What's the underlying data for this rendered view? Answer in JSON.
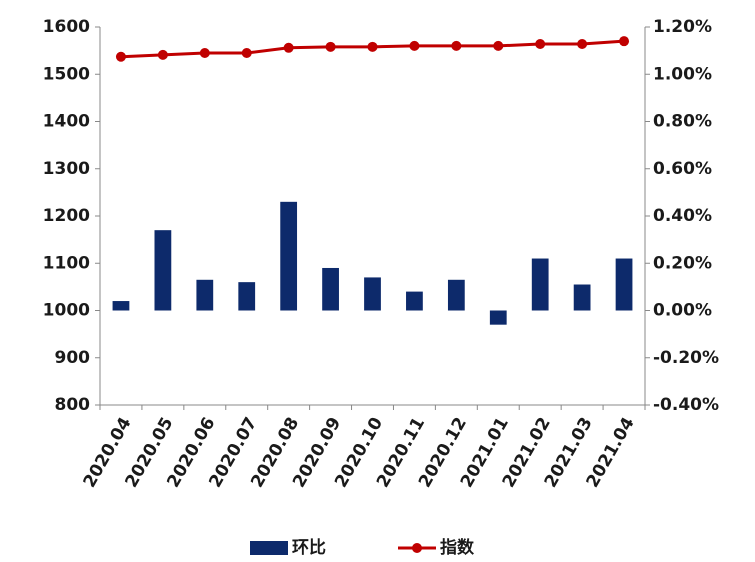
{
  "chart_data": {
    "type": "bar",
    "categories": [
      "2020.04",
      "2020.05",
      "2020.06",
      "2020.07",
      "2020.08",
      "2020.09",
      "2020.10",
      "2020.11",
      "2020.12",
      "2021.01",
      "2021.02",
      "2021.03",
      "2021.04"
    ],
    "series": [
      {
        "name": "环比",
        "type": "bar",
        "color": "#0d2a6b",
        "axis": "y2",
        "values": [
          0.04,
          0.34,
          0.13,
          0.12,
          0.46,
          0.18,
          0.14,
          0.08,
          0.13,
          -0.06,
          0.22,
          0.11,
          0.22
        ]
      },
      {
        "name": "指数",
        "type": "line",
        "color": "#c00000",
        "values": [
          1537,
          1541,
          1545,
          1545,
          1556,
          1558,
          1558,
          1560,
          1560,
          1560,
          1564,
          1564,
          1570
        ]
      }
    ],
    "ylim": [
      800,
      1600
    ],
    "yticks": [
      800,
      900,
      1000,
      1100,
      1200,
      1300,
      1400,
      1500,
      1600
    ],
    "y2lim": [
      -0.4,
      1.2
    ],
    "y2ticks": [
      {
        "value": -0.4,
        "label": "-0.40%"
      },
      {
        "value": -0.2,
        "label": "-0.20%"
      },
      {
        "value": 0,
        "label": "0.00%"
      },
      {
        "value": 0.2,
        "label": "0.20%"
      },
      {
        "value": 0.4,
        "label": "0.40%"
      },
      {
        "value": 0.6,
        "label": "0.60%"
      },
      {
        "value": 0.8,
        "label": "0.80%"
      },
      {
        "value": 1.0,
        "label": "1.00%"
      },
      {
        "value": 1.2,
        "label": "1.20%"
      }
    ],
    "grid": false,
    "legend": "bottom"
  }
}
